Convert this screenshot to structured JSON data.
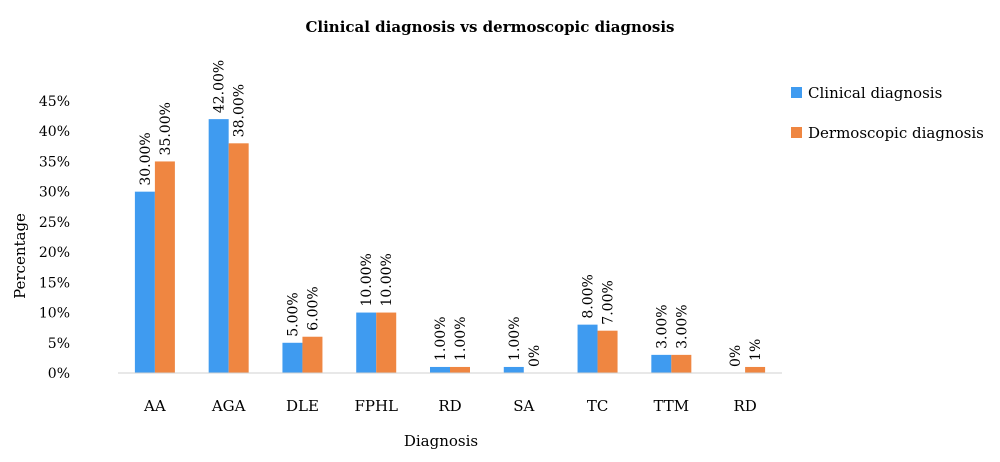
{
  "chart_data": {
    "type": "bar",
    "title": "Clinical diagnosis vs dermoscopic diagnosis",
    "xlabel": "Diagnosis",
    "ylabel": "Percentage",
    "categories": [
      "AA",
      "AGA",
      "DLE",
      "FPHL",
      "RD",
      "SA",
      "TC",
      "TTM",
      "RD"
    ],
    "ylim": [
      0,
      45
    ],
    "yticks": [
      "0%",
      "5%",
      "10%",
      "15%",
      "20%",
      "25%",
      "30%",
      "35%",
      "40%",
      "45%"
    ],
    "grid": false,
    "legend_position": "right",
    "series": [
      {
        "name": "Clinical diagnosis",
        "color": "#3f9bf0",
        "values": [
          30,
          42,
          5,
          10,
          1,
          1,
          8,
          3,
          0
        ],
        "labels": [
          "30.00%",
          "42.00%",
          "5.00%",
          "10.00%",
          "1.00%",
          "1.00%",
          "8.00%",
          "3.00%",
          "0%"
        ]
      },
      {
        "name": "Dermoscopic diagnosis",
        "color": "#ef8641",
        "values": [
          35,
          38,
          6,
          10,
          1,
          0,
          7,
          3,
          1
        ],
        "labels": [
          "35.00%",
          "38.00%",
          "6.00%",
          "10.00%",
          "1.00%",
          "0%",
          "7.00%",
          "3.00%",
          "1%"
        ]
      }
    ]
  }
}
